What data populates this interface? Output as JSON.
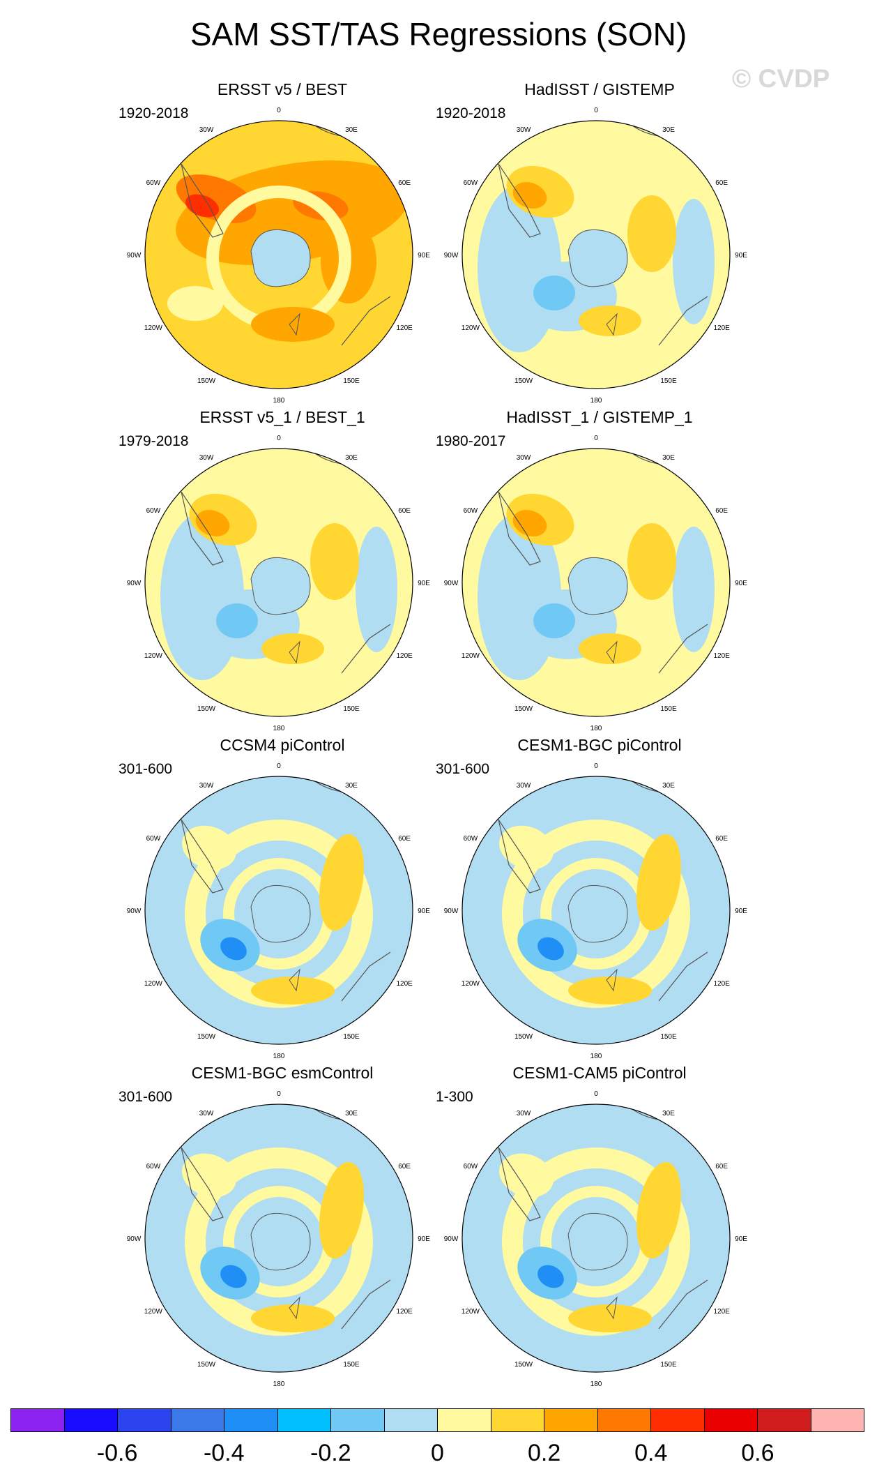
{
  "title": "SAM SST/TAS Regressions (SON)",
  "watermark": "© CVDP",
  "lon_labels": [
    "0",
    "30E",
    "60E",
    "90E",
    "120E",
    "150E",
    "180",
    "150W",
    "120W",
    "90W",
    "60W",
    "30W"
  ],
  "panels": [
    {
      "title": "ERSST v5 / BEST",
      "years": "1920-2018",
      "style": "warm"
    },
    {
      "title": "HadISST / GISTEMP",
      "years": "1920-2018",
      "style": "mixed"
    },
    {
      "title": "ERSST v5_1 / BEST_1",
      "years": "1979-2018",
      "style": "mixed"
    },
    {
      "title": "HadISST_1 / GISTEMP_1",
      "years": "1980-2017",
      "style": "mixed"
    },
    {
      "title": "CCSM4 piControl",
      "years": "301-600",
      "style": "model"
    },
    {
      "title": "CESM1-BGC piControl",
      "years": "301-600",
      "style": "model"
    },
    {
      "title": "CESM1-BGC esmControl",
      "years": "301-600",
      "style": "model"
    },
    {
      "title": "CESM1-CAM5 piControl",
      "years": "1-300",
      "style": "model"
    }
  ],
  "colorbar": {
    "colors": [
      "#8b22f0",
      "#1a0dff",
      "#2b44f0",
      "#3b78e8",
      "#1f8ff5",
      "#00c0ff",
      "#70c8f4",
      "#b1ddf2",
      "#fffa9f",
      "#ffd632",
      "#ffa700",
      "#ff7800",
      "#ff2e00",
      "#ea0000",
      "#d01c1c",
      "#ffb4b4"
    ],
    "labels": [
      "-0.6",
      "-0.4",
      "-0.2",
      "0",
      "0.2",
      "0.4",
      "0.6"
    ]
  }
}
